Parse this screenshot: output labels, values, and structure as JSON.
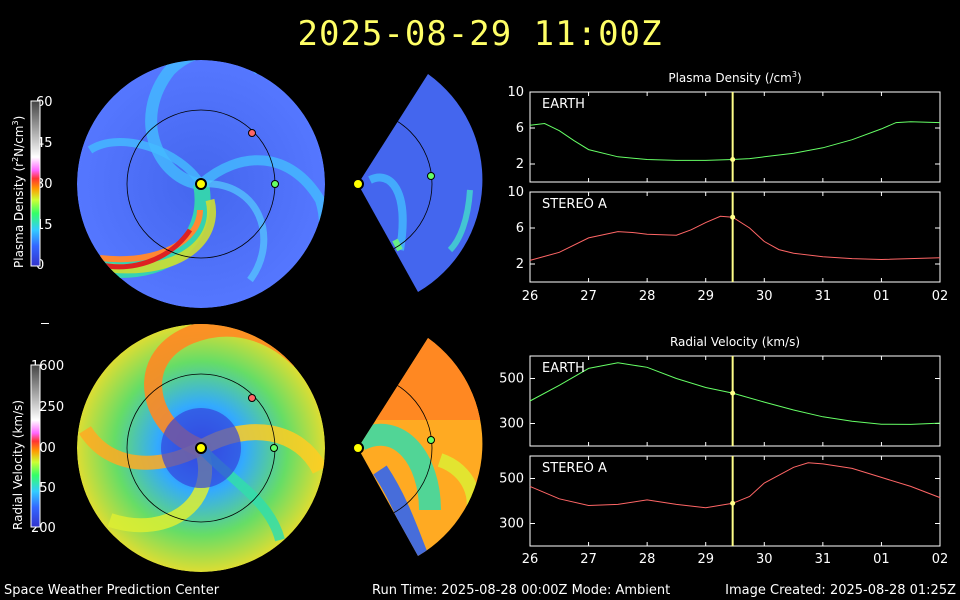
{
  "timestamp": "2025-08-29 11:00Z",
  "colorbars": {
    "density": {
      "label_main": "Plasma Density (r",
      "label_sup": "2",
      "label_rest": "N/cm",
      "label_sup2": "3",
      "label_end": ")",
      "ticks": [
        "60",
        "45",
        "30",
        "15",
        "0"
      ]
    },
    "velocity": {
      "label": "Radial Velocity (km/s)",
      "ticks": [
        "1600",
        "1250",
        "900",
        "550",
        "200"
      ]
    }
  },
  "footer": {
    "left": "Space Weather Prediction Center",
    "center": "Run Time: 2025-08-28 00:00Z  Mode: Ambient",
    "right": "Image Created: 2025-08-28 01:25Z"
  },
  "colors": {
    "earth": "#66ff66",
    "stereo": "#ff6666",
    "marker": "#ffff88",
    "title": "#ffff66"
  },
  "chart_data": [
    {
      "type": "line",
      "title_main": "Plasma Density (/cm",
      "title_sup": "3",
      "title_end": ")",
      "x_ticks": [
        "26",
        "27",
        "28",
        "29",
        "30",
        "31",
        "01",
        "02"
      ],
      "x_range": [
        26,
        33
      ],
      "marker_x": 29.46,
      "panels": [
        {
          "label": "EARTH",
          "color": "#66ff66",
          "ylim": [
            0,
            10
          ],
          "yticks": [
            "10",
            "6",
            "2"
          ],
          "x": [
            26,
            26.25,
            26.5,
            26.75,
            27,
            27.5,
            28,
            28.5,
            29,
            29.46,
            29.75,
            30,
            30.5,
            31,
            31.5,
            32,
            32.25,
            32.5,
            33
          ],
          "values": [
            6.3,
            6.5,
            5.7,
            4.6,
            3.6,
            2.8,
            2.5,
            2.4,
            2.4,
            2.5,
            2.6,
            2.8,
            3.2,
            3.8,
            4.7,
            5.9,
            6.6,
            6.7,
            6.6
          ]
        },
        {
          "label": "STEREO A",
          "color": "#ff6666",
          "ylim": [
            0,
            10
          ],
          "yticks": [
            "10",
            "6",
            "2"
          ],
          "x": [
            26,
            26.5,
            27,
            27.5,
            27.75,
            28,
            28.5,
            28.75,
            29,
            29.25,
            29.46,
            29.75,
            30,
            30.25,
            30.5,
            31,
            31.5,
            32,
            33
          ],
          "values": [
            2.4,
            3.3,
            4.9,
            5.6,
            5.5,
            5.3,
            5.2,
            5.8,
            6.6,
            7.3,
            7.2,
            6.0,
            4.5,
            3.6,
            3.2,
            2.8,
            2.6,
            2.5,
            2.7
          ]
        }
      ]
    },
    {
      "type": "line",
      "title_main": "Radial Velocity (km/s)",
      "title_sup": "",
      "title_end": "",
      "x_ticks": [
        "26",
        "27",
        "28",
        "29",
        "30",
        "31",
        "01",
        "02"
      ],
      "x_range": [
        26,
        33
      ],
      "marker_x": 29.46,
      "panels": [
        {
          "label": "EARTH",
          "color": "#66ff66",
          "ylim": [
            200,
            600
          ],
          "yticks": [
            "500",
            "300"
          ],
          "x": [
            26,
            26.5,
            27,
            27.5,
            28,
            28.5,
            29,
            29.46,
            30,
            30.5,
            31,
            31.5,
            32,
            32.5,
            33
          ],
          "values": [
            400,
            470,
            545,
            570,
            550,
            500,
            460,
            435,
            395,
            360,
            330,
            310,
            297,
            296,
            302
          ]
        },
        {
          "label": "STEREO A",
          "color": "#ff6666",
          "ylim": [
            200,
            600
          ],
          "yticks": [
            "500",
            "300"
          ],
          "x": [
            26,
            26.5,
            27,
            27.5,
            28,
            28.5,
            29,
            29.46,
            29.75,
            30,
            30.5,
            30.75,
            31,
            31.5,
            32,
            32.5,
            33
          ],
          "values": [
            465,
            410,
            380,
            385,
            405,
            385,
            370,
            390,
            420,
            480,
            550,
            570,
            565,
            545,
            505,
            465,
            415
          ]
        }
      ]
    }
  ]
}
